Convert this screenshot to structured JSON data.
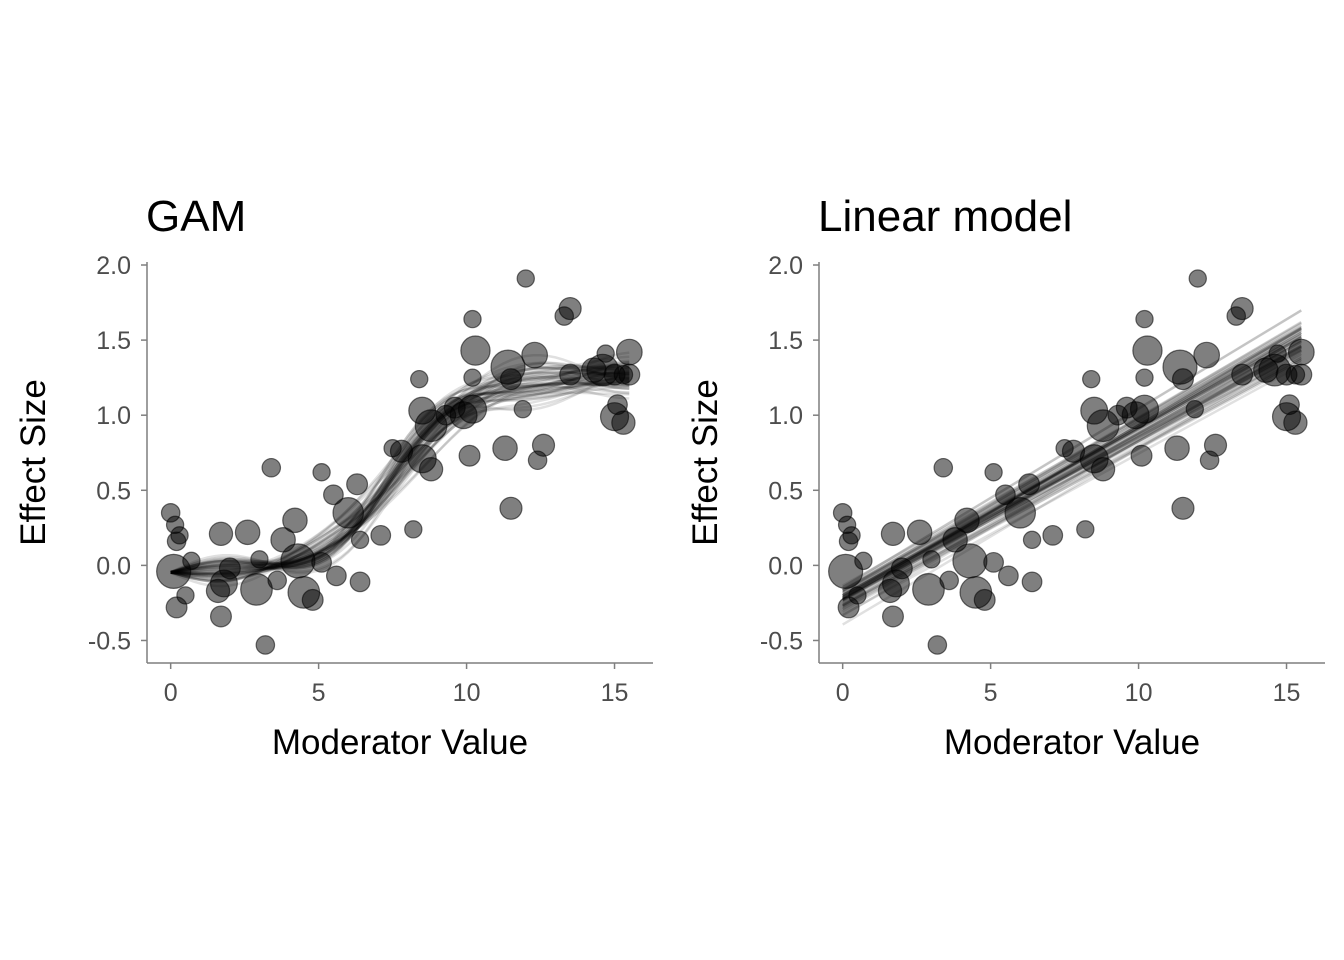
{
  "chart_data": [
    {
      "type": "scatter",
      "title": "GAM",
      "xlabel": "Moderator Value",
      "ylabel": "Effect Size",
      "xlim": [
        -0.8,
        16.3
      ],
      "ylim": [
        -0.65,
        2.02
      ],
      "x_ticks": [
        "0",
        "5",
        "10",
        "15"
      ],
      "y_ticks": [
        "-0.5",
        "0.0",
        "0.5",
        "1.0",
        "1.5",
        "2.0"
      ],
      "grid": false,
      "fit": "smooth",
      "posterior_draws": 60
    },
    {
      "type": "scatter",
      "title": "Linear model",
      "xlabel": "Moderator Value",
      "ylabel": "Effect Size",
      "xlim": [
        -0.8,
        16.3
      ],
      "ylim": [
        -0.65,
        2.02
      ],
      "x_ticks": [
        "0",
        "5",
        "10",
        "15"
      ],
      "y_ticks": [
        "-0.5",
        "0.0",
        "0.5",
        "1.0",
        "1.5",
        "2.0"
      ],
      "grid": false,
      "fit": "linear",
      "posterior_draws": 60
    }
  ],
  "points": [
    {
      "x": 0.0,
      "y": 0.35,
      "w": 0.35
    },
    {
      "x": 0.15,
      "y": 0.27,
      "w": 0.3
    },
    {
      "x": 0.2,
      "y": 0.16,
      "w": 0.35
    },
    {
      "x": 0.3,
      "y": 0.2,
      "w": 0.3
    },
    {
      "x": 0.1,
      "y": -0.04,
      "w": 1.0
    },
    {
      "x": 0.2,
      "y": -0.28,
      "w": 0.45
    },
    {
      "x": 0.5,
      "y": -0.2,
      "w": 0.3
    },
    {
      "x": 0.7,
      "y": 0.03,
      "w": 0.3
    },
    {
      "x": 1.6,
      "y": -0.17,
      "w": 0.55
    },
    {
      "x": 1.7,
      "y": 0.21,
      "w": 0.55
    },
    {
      "x": 1.7,
      "y": -0.34,
      "w": 0.45
    },
    {
      "x": 1.8,
      "y": -0.12,
      "w": 0.7
    },
    {
      "x": 2.0,
      "y": -0.02,
      "w": 0.45
    },
    {
      "x": 2.6,
      "y": 0.22,
      "w": 0.6
    },
    {
      "x": 2.9,
      "y": -0.16,
      "w": 0.9
    },
    {
      "x": 3.0,
      "y": 0.04,
      "w": 0.3
    },
    {
      "x": 3.2,
      "y": -0.53,
      "w": 0.35
    },
    {
      "x": 3.4,
      "y": 0.65,
      "w": 0.35
    },
    {
      "x": 3.6,
      "y": -0.1,
      "w": 0.35
    },
    {
      "x": 3.8,
      "y": 0.17,
      "w": 0.6
    },
    {
      "x": 4.2,
      "y": 0.3,
      "w": 0.6
    },
    {
      "x": 4.3,
      "y": 0.03,
      "w": 1.0
    },
    {
      "x": 4.5,
      "y": -0.18,
      "w": 0.9
    },
    {
      "x": 4.8,
      "y": -0.23,
      "w": 0.45
    },
    {
      "x": 5.1,
      "y": 0.62,
      "w": 0.3
    },
    {
      "x": 5.1,
      "y": 0.02,
      "w": 0.4
    },
    {
      "x": 5.5,
      "y": 0.47,
      "w": 0.4
    },
    {
      "x": 5.6,
      "y": -0.07,
      "w": 0.4
    },
    {
      "x": 6.0,
      "y": 0.35,
      "w": 0.85
    },
    {
      "x": 6.3,
      "y": 0.54,
      "w": 0.45
    },
    {
      "x": 6.4,
      "y": 0.17,
      "w": 0.3
    },
    {
      "x": 6.4,
      "y": -0.11,
      "w": 0.4
    },
    {
      "x": 7.1,
      "y": 0.2,
      "w": 0.4
    },
    {
      "x": 7.5,
      "y": 0.78,
      "w": 0.3
    },
    {
      "x": 7.8,
      "y": 0.76,
      "w": 0.5
    },
    {
      "x": 8.2,
      "y": 0.24,
      "w": 0.3
    },
    {
      "x": 8.4,
      "y": 1.24,
      "w": 0.3
    },
    {
      "x": 8.5,
      "y": 1.03,
      "w": 0.7
    },
    {
      "x": 8.5,
      "y": 0.71,
      "w": 0.75
    },
    {
      "x": 8.8,
      "y": 0.93,
      "w": 0.9
    },
    {
      "x": 8.8,
      "y": 0.64,
      "w": 0.55
    },
    {
      "x": 9.3,
      "y": 1.0,
      "w": 0.4
    },
    {
      "x": 9.6,
      "y": 1.05,
      "w": 0.45
    },
    {
      "x": 9.9,
      "y": 1.0,
      "w": 0.7
    },
    {
      "x": 10.1,
      "y": 0.73,
      "w": 0.45
    },
    {
      "x": 10.2,
      "y": 1.64,
      "w": 0.3
    },
    {
      "x": 10.2,
      "y": 1.25,
      "w": 0.3
    },
    {
      "x": 10.2,
      "y": 1.04,
      "w": 0.75
    },
    {
      "x": 10.3,
      "y": 1.43,
      "w": 0.8
    },
    {
      "x": 11.3,
      "y": 0.78,
      "w": 0.6
    },
    {
      "x": 11.4,
      "y": 1.32,
      "w": 1.0
    },
    {
      "x": 11.5,
      "y": 1.24,
      "w": 0.45
    },
    {
      "x": 11.5,
      "y": 0.38,
      "w": 0.5
    },
    {
      "x": 11.9,
      "y": 1.04,
      "w": 0.3
    },
    {
      "x": 12.0,
      "y": 1.91,
      "w": 0.3
    },
    {
      "x": 12.3,
      "y": 1.4,
      "w": 0.65
    },
    {
      "x": 12.4,
      "y": 0.7,
      "w": 0.35
    },
    {
      "x": 12.6,
      "y": 0.8,
      "w": 0.5
    },
    {
      "x": 13.3,
      "y": 1.66,
      "w": 0.35
    },
    {
      "x": 13.5,
      "y": 1.71,
      "w": 0.5
    },
    {
      "x": 13.5,
      "y": 1.27,
      "w": 0.45
    },
    {
      "x": 14.3,
      "y": 1.3,
      "w": 0.6
    },
    {
      "x": 14.6,
      "y": 1.3,
      "w": 0.9
    },
    {
      "x": 14.7,
      "y": 1.41,
      "w": 0.3
    },
    {
      "x": 15.0,
      "y": 1.27,
      "w": 0.45
    },
    {
      "x": 15.0,
      "y": 0.99,
      "w": 0.75
    },
    {
      "x": 15.1,
      "y": 1.07,
      "w": 0.4
    },
    {
      "x": 15.3,
      "y": 0.95,
      "w": 0.55
    },
    {
      "x": 15.3,
      "y": 1.27,
      "w": 0.35
    },
    {
      "x": 15.5,
      "y": 1.42,
      "w": 0.65
    },
    {
      "x": 15.5,
      "y": 1.27,
      "w": 0.45
    }
  ]
}
